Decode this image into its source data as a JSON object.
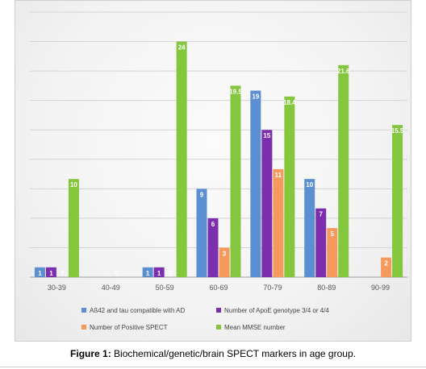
{
  "caption": {
    "label": "Figure 1:",
    "text": " Biochemical/genetic/brain SPECT markers in age group."
  },
  "chart_data": {
    "type": "bar",
    "categories": [
      "30-39",
      "40-49",
      "50-59",
      "60-69",
      "70-79",
      "80-89",
      "90-99"
    ],
    "ylim": [
      0,
      27
    ],
    "grid": true,
    "legend_position": "bottom",
    "series": [
      {
        "name": "Aß42 and tau compatible with AD",
        "color": "#5b8fd1",
        "values": [
          1,
          null,
          1,
          9,
          19,
          10,
          null
        ],
        "labels": [
          "1",
          "",
          "1",
          "9",
          "19",
          "10",
          ""
        ]
      },
      {
        "name": "Number of ApoE genotype 3/4 or 4/4",
        "color": "#7b2fae",
        "values": [
          1,
          null,
          1,
          6,
          15,
          7,
          null
        ],
        "labels": [
          "1",
          "",
          "1",
          "6",
          "15",
          "7",
          ""
        ]
      },
      {
        "name": "Number of Positive SPECT",
        "color": "#f59a5c",
        "values": [
          0,
          0,
          0,
          3,
          11,
          5,
          2
        ],
        "labels": [
          "0",
          "0",
          "0",
          "3",
          "11",
          "5",
          "2"
        ]
      },
      {
        "name": "Mean MMSE number",
        "color": "#84c63e",
        "values": [
          10,
          null,
          24,
          19.5,
          18.4,
          21.6,
          15.5
        ],
        "labels": [
          "10",
          "",
          "24",
          "19.5",
          "18.4",
          "21.6",
          "15.5"
        ]
      }
    ]
  }
}
